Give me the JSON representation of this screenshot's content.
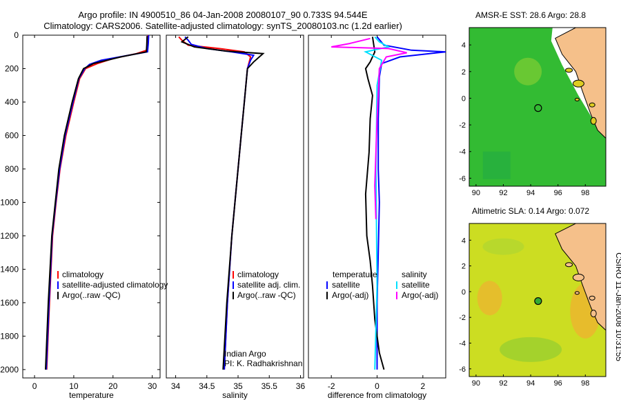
{
  "header": {
    "line1": "Argo profile: IN 4900510_86 04-Jan-2008 20080107_90 0.733S 94.544E",
    "line2": "Climatology: CARS2006. Satellite-adjusted climatology: synTS_20080103.nc (1.2d earlier)"
  },
  "side_label": "CSIRO 11-Jan-2008 10:31:55",
  "chart_data": [
    {
      "id": "temp",
      "type": "line",
      "xlabel": "temperature",
      "xlim": [
        -3,
        32
      ],
      "ylim": [
        0,
        2050
      ],
      "xticks": [
        0,
        10,
        20,
        30
      ],
      "yticks": [
        0,
        200,
        400,
        600,
        800,
        1000,
        1200,
        1400,
        1600,
        1800,
        2000
      ],
      "legend": [
        "climatology",
        "satellite-adjusted climatology",
        "Argo(..raw -QC)"
      ],
      "series": [
        {
          "name": "climatology",
          "color": "#ff0000",
          "x": [
            28.9,
            28.8,
            28.6,
            26,
            20,
            16,
            13,
            11.5,
            10,
            8,
            6.5,
            5.5,
            4.6,
            3.8,
            3.1
          ],
          "y": [
            0,
            50,
            90,
            110,
            140,
            170,
            200,
            260,
            400,
            600,
            800,
            1000,
            1200,
            1600,
            2000
          ]
        },
        {
          "name": "satellite-adjusted climatology",
          "color": "#0000ff",
          "x": [
            29.1,
            29,
            28.8,
            24,
            17,
            14,
            12.8,
            11.3,
            9.8,
            7.8,
            6.4,
            5.4,
            4.5,
            3.7,
            3
          ],
          "y": [
            0,
            50,
            100,
            120,
            150,
            175,
            200,
            260,
            400,
            600,
            800,
            1000,
            1200,
            1600,
            2000
          ]
        },
        {
          "name": "Argo(..raw -QC)",
          "color": "#000000",
          "x": [
            28.7,
            28.6,
            28.5,
            22,
            15,
            12.5,
            11.2,
            9.6,
            7.6,
            6.2,
            5.3,
            4.4,
            3.5,
            2.8
          ],
          "y": [
            5,
            60,
            100,
            130,
            170,
            200,
            260,
            400,
            600,
            800,
            1000,
            1200,
            1600,
            2000
          ]
        }
      ]
    },
    {
      "id": "sal",
      "type": "line",
      "xlabel": "salinity",
      "xlim": [
        33.85,
        36.05
      ],
      "ylim": [
        0,
        2050
      ],
      "xticks": [
        34,
        34.5,
        35,
        35.5,
        36
      ],
      "ticklabels": [
        "34",
        "34.5",
        "35",
        "35.5",
        "36"
      ],
      "legend": [
        "climatology",
        "satellite adj. clim.",
        "Argo(..raw -QC)"
      ],
      "annotation": [
        "Indian Argo",
        "PI: K. Radhakrishnan"
      ],
      "series": [
        {
          "name": "climatology",
          "color": "#ff0000",
          "x": [
            34.05,
            34.1,
            34.2,
            34.7,
            35.1,
            35.2,
            35.15,
            35.1,
            35.05,
            35.0,
            34.95,
            34.9,
            34.83,
            34.78
          ],
          "y": [
            10,
            30,
            60,
            80,
            100,
            130,
            200,
            400,
            600,
            800,
            1000,
            1200,
            1600,
            2000
          ]
        },
        {
          "name": "satellite adj. clim.",
          "color": "#0000ff",
          "x": [
            34.15,
            34.2,
            34.25,
            34.5,
            34.9,
            35.25,
            35.2,
            35.15,
            35.1,
            35.05,
            35.0,
            34.95,
            34.9,
            34.83,
            34.78
          ],
          "y": [
            10,
            30,
            55,
            80,
            100,
            120,
            150,
            200,
            400,
            600,
            800,
            1000,
            1200,
            1600,
            2000
          ]
        },
        {
          "name": "Argo(..raw -QC)",
          "color": "#000000",
          "x": [
            34.2,
            34.1,
            34.3,
            34.8,
            35.4,
            35.25,
            35.15,
            35.1,
            35.05,
            35.0,
            34.95,
            34.9,
            34.82,
            34.76
          ],
          "y": [
            10,
            40,
            70,
            95,
            110,
            160,
            200,
            400,
            600,
            800,
            1000,
            1200,
            1600,
            2000
          ]
        }
      ]
    },
    {
      "id": "diff",
      "type": "line",
      "xlabel": "difference from climatology",
      "xlim": [
        -3,
        3
      ],
      "ylim": [
        0,
        2050
      ],
      "xticks": [
        -2,
        0,
        2
      ],
      "legend_left_title": "temperature",
      "legend_right_title": "salinity",
      "legend_left": [
        "satellite",
        "Argo(-adj)"
      ],
      "legend_right": [
        "satellite",
        "Argo(-adj)"
      ],
      "series": [
        {
          "name": "temperature satellite",
          "color": "#0000ff",
          "x": [
            0,
            0.3,
            1.5,
            3,
            1.0,
            0.2,
            0.1,
            0.05,
            0.05,
            0.1,
            0.05,
            0.0,
            0.0
          ],
          "y": [
            10,
            60,
            90,
            100,
            130,
            170,
            250,
            500,
            800,
            1000,
            1300,
            1600,
            2000
          ]
        },
        {
          "name": "temperature Argo(-adj)",
          "color": "#000000",
          "x": [
            -0.2,
            -0.1,
            -0.3,
            -0.5,
            -0.4,
            -0.2,
            -0.3,
            -0.35,
            -0.5,
            -0.45,
            -0.3,
            -0.2,
            -0.1,
            0.1,
            0.3
          ],
          "y": [
            10,
            100,
            160,
            200,
            260,
            360,
            500,
            700,
            950,
            1200,
            1350,
            1500,
            1700,
            1900,
            2000
          ]
        },
        {
          "name": "salinity satellite",
          "color": "#00e0ff",
          "x": [
            -0.1,
            0.1,
            0.5,
            -0.5,
            0.2,
            0.0,
            -0.05,
            0.0,
            -0.1
          ],
          "y": [
            10,
            40,
            70,
            100,
            150,
            300,
            800,
            1500,
            2000
          ]
        },
        {
          "name": "salinity Argo(-adj)",
          "color": "#ff00ff",
          "x": [
            -0.3,
            -1.2,
            -2.0,
            0.5,
            1.3,
            0.4,
            0.1,
            0.0,
            -0.1,
            -0.05
          ],
          "y": [
            20,
            50,
            70,
            80,
            105,
            130,
            200,
            500,
            900,
            1100
          ]
        }
      ]
    },
    {
      "id": "sst",
      "type": "heatmap",
      "title": "AMSR-E SST: 28.6 Argo: 28.8",
      "xlim": [
        89.5,
        99.5
      ],
      "ylim": [
        -6.6,
        5.3
      ],
      "xticks": [
        90,
        92,
        94,
        96,
        98
      ],
      "yticks": [
        -6,
        -4,
        -2,
        0,
        2,
        4
      ],
      "marker": {
        "lon": 94.544,
        "lat": -0.733,
        "fill": "none"
      }
    },
    {
      "id": "sla",
      "type": "heatmap",
      "title": "Altimetric SLA: 0.14 Argo: 0.072",
      "xlim": [
        89.5,
        99.5
      ],
      "ylim": [
        -6.6,
        5.3
      ],
      "xticks": [
        90,
        92,
        94,
        96,
        98
      ],
      "yticks": [
        -6,
        -4,
        -2,
        0,
        2,
        4
      ],
      "marker": {
        "lon": 94.544,
        "lat": -0.733,
        "fill": "#33aa33"
      }
    }
  ]
}
